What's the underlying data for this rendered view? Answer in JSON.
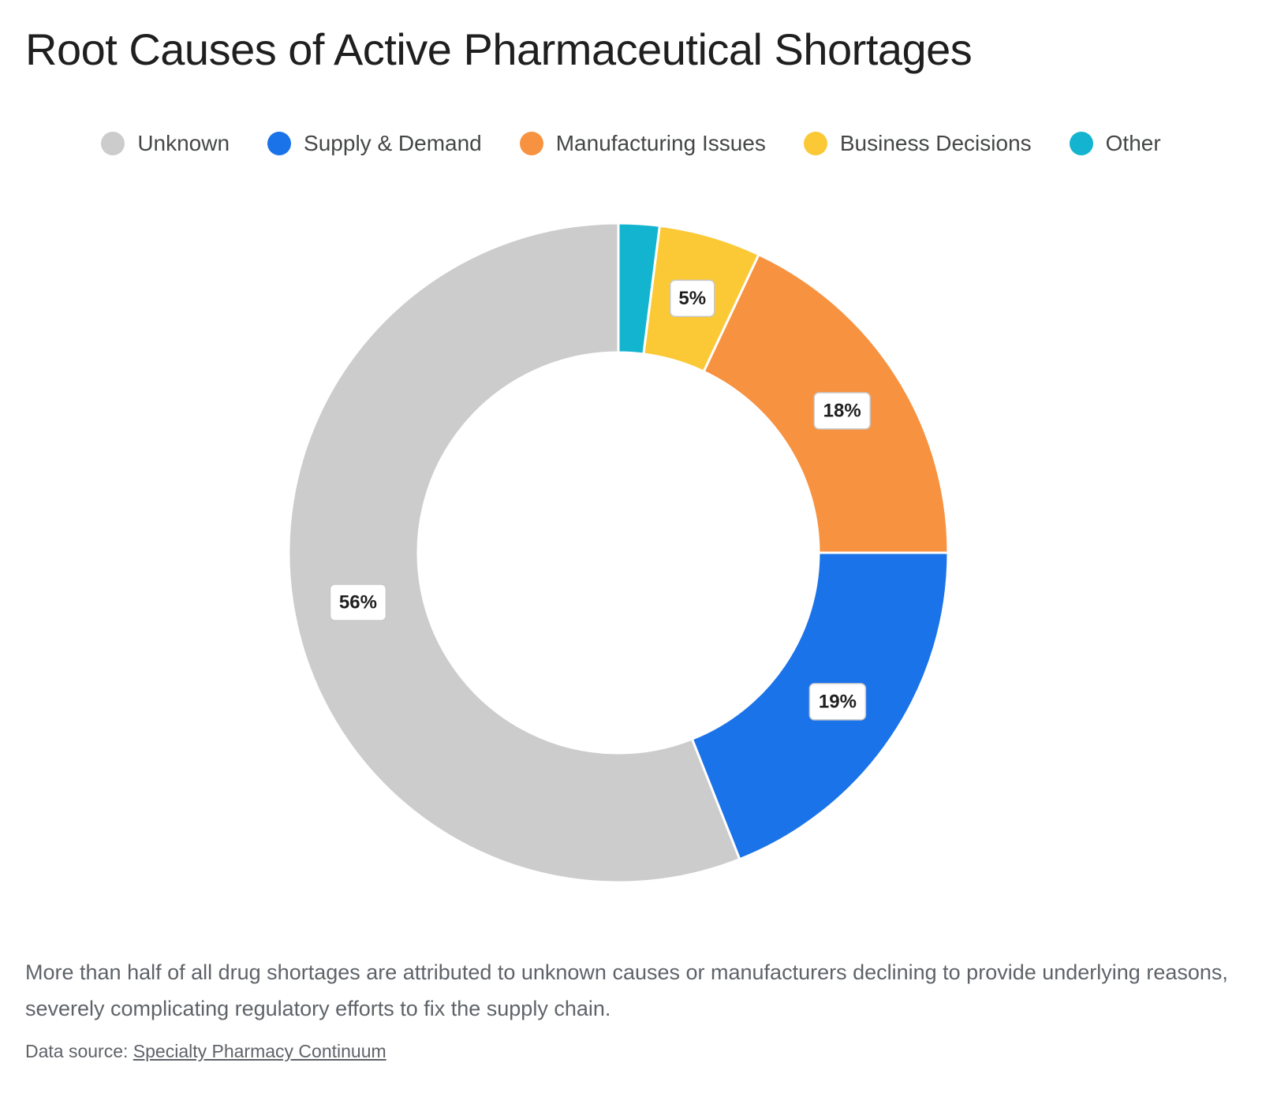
{
  "title": "Root Causes of Active Pharmaceutical Shortages",
  "chart_data": {
    "type": "pie",
    "variant": "donut",
    "title": "Root Causes of Active Pharmaceutical Shortages",
    "legend_position": "top",
    "slices": [
      {
        "label": "Unknown",
        "value": 56,
        "data_label": "56%",
        "color": "#cccccc"
      },
      {
        "label": "Supply & Demand",
        "value": 19,
        "data_label": "19%",
        "color": "#1a73e8"
      },
      {
        "label": "Manufacturing Issues",
        "value": 18,
        "data_label": "18%",
        "color": "#f79240"
      },
      {
        "label": "Business Decisions",
        "value": 5,
        "data_label": "5%",
        "color": "#fbc935"
      },
      {
        "label": "Other",
        "value": 2,
        "data_label": "",
        "color": "#13b4cf"
      }
    ]
  },
  "caption": "More than half of all drug shortages are attributed to unknown causes or manufacturers declining to provide underlying reasons, severely complicating regulatory efforts to fix the supply chain.",
  "source": {
    "prefix": "Data source: ",
    "link_text": "Specialty Pharmacy Continuum"
  }
}
